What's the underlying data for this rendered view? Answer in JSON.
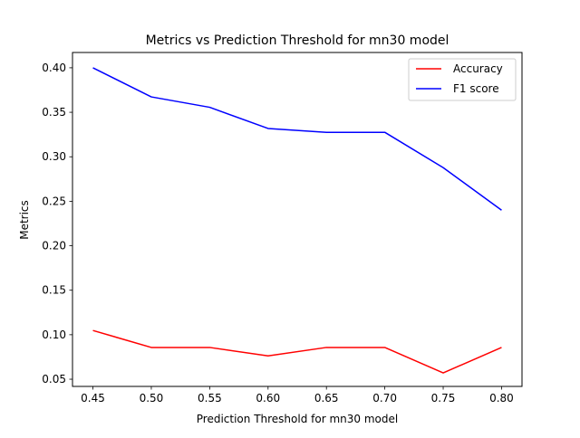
{
  "chart_data": {
    "type": "line",
    "title": "Metrics vs Prediction Threshold for mn30 model",
    "xlabel": "Prediction Threshold for mn30 model",
    "ylabel": "Metrics",
    "x": [
      0.45,
      0.5,
      0.55,
      0.6,
      0.65,
      0.7,
      0.75,
      0.8
    ],
    "xticks": [
      "0.45",
      "0.50",
      "0.55",
      "0.60",
      "0.65",
      "0.70",
      "0.75",
      "0.80"
    ],
    "yticks": [
      "0.05",
      "0.10",
      "0.15",
      "0.20",
      "0.25",
      "0.30",
      "0.35",
      "0.40"
    ],
    "xlim": [
      0.4325,
      0.8175
    ],
    "ylim": [
      0.0419,
      0.4172
    ],
    "grid": false,
    "legend_position": "upper right",
    "series": [
      {
        "name": "Accuracy",
        "color": "#ff0000",
        "values": [
          0.1048,
          0.0857,
          0.0857,
          0.0762,
          0.0857,
          0.0857,
          0.0571,
          0.0857
        ]
      },
      {
        "name": "F1 score",
        "color": "#0000ff",
        "values": [
          0.4,
          0.3673,
          0.3556,
          0.3318,
          0.3275,
          0.3275,
          0.2878,
          0.24
        ]
      }
    ]
  }
}
